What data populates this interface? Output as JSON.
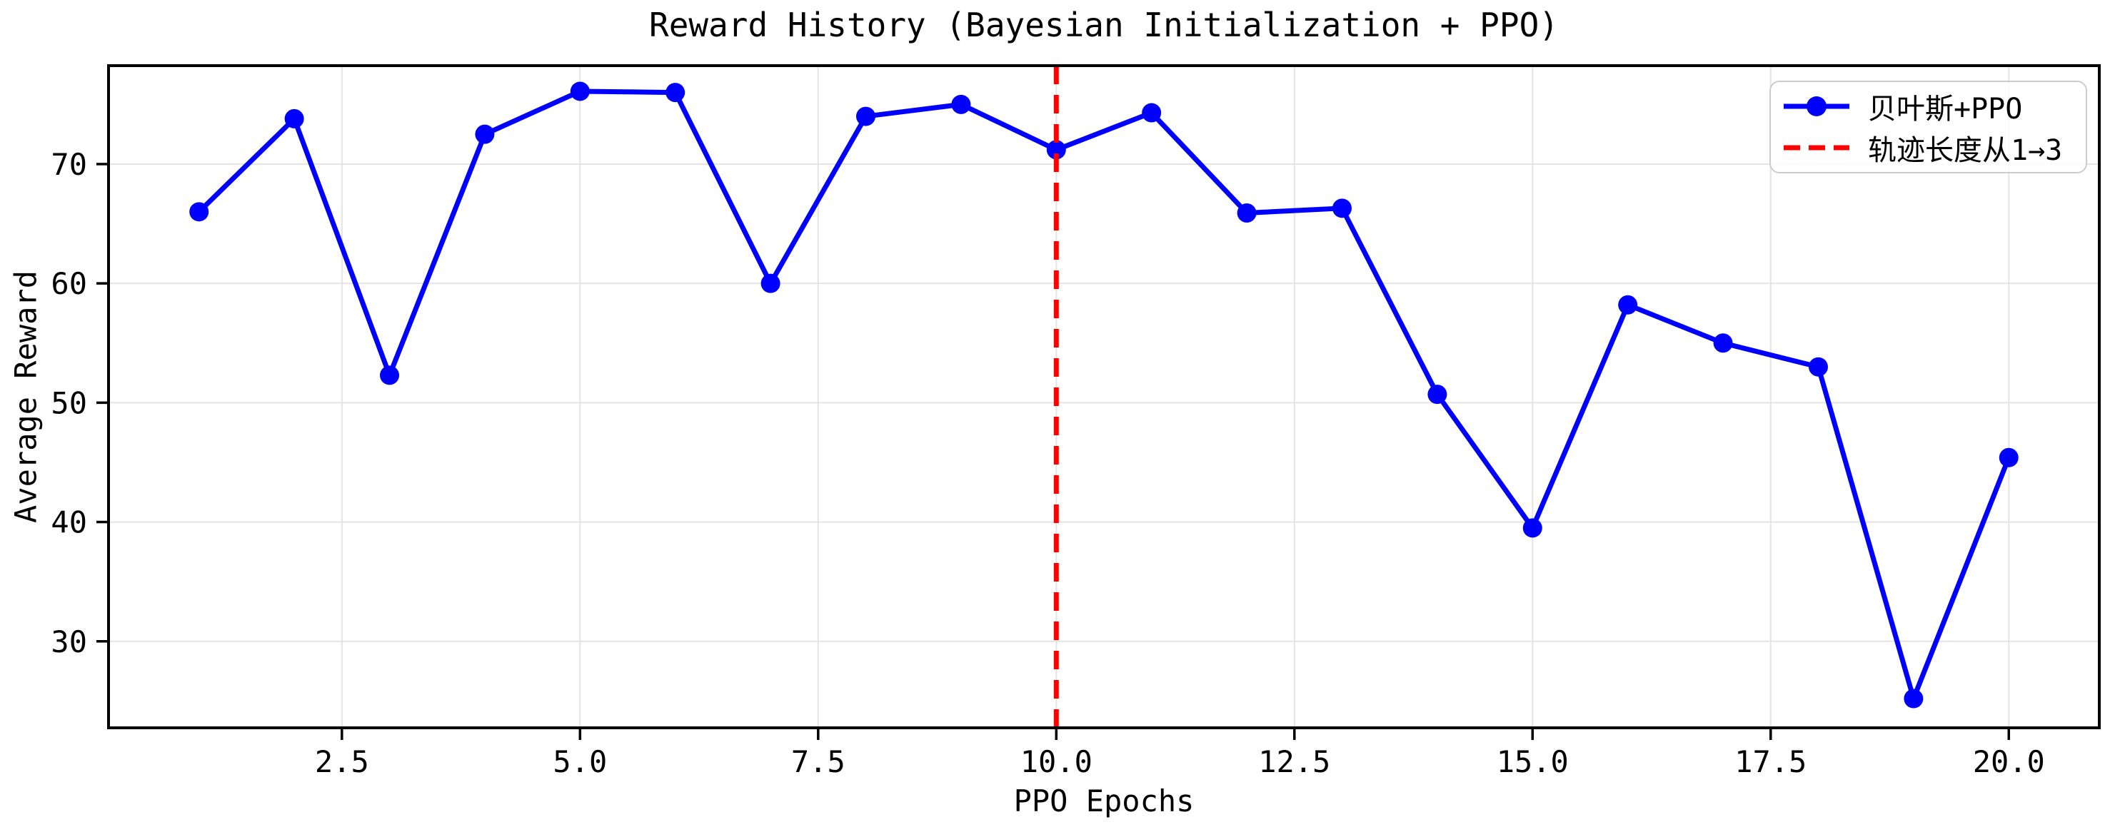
{
  "chart_data": {
    "type": "line",
    "title": "Reward History (Bayesian Initialization + PPO)",
    "xlabel": "PPO Epochs",
    "ylabel": "Average Reward",
    "xlim": [
      0.05,
      20.95
    ],
    "ylim": [
      22.75,
      78.25
    ],
    "xticks": [
      2.5,
      5.0,
      7.5,
      10.0,
      12.5,
      15.0,
      17.5,
      20.0
    ],
    "xtick_labels": [
      "2.5",
      "5.0",
      "7.5",
      "10.0",
      "12.5",
      "15.0",
      "17.5",
      "20.0"
    ],
    "yticks": [
      30,
      40,
      50,
      60,
      70
    ],
    "grid": true,
    "grid_color": "#e4e4e4",
    "background_color": "#ffffff",
    "spine_color": "#000000",
    "series": [
      {
        "name": "贝叶斯+PPO",
        "color": "#0000ff",
        "marker": "circle",
        "line_style": "solid",
        "x": [
          1,
          2,
          3,
          4,
          5,
          6,
          7,
          8,
          9,
          10,
          11,
          12,
          13,
          14,
          15,
          16,
          17,
          18,
          19,
          20
        ],
        "values": [
          66.0,
          73.8,
          52.3,
          72.5,
          76.1,
          76.0,
          60.0,
          74.0,
          75.0,
          71.2,
          74.3,
          65.9,
          66.3,
          50.7,
          39.5,
          58.2,
          55.0,
          53.0,
          25.2,
          45.4
        ]
      }
    ],
    "vline": {
      "x": 10,
      "color": "#ff0000",
      "style": "dashed",
      "label": "轨迹长度从1→3"
    },
    "legend": {
      "position": "upper right",
      "entries": [
        "贝叶斯+PPO",
        "轨迹长度从1→3"
      ]
    }
  }
}
